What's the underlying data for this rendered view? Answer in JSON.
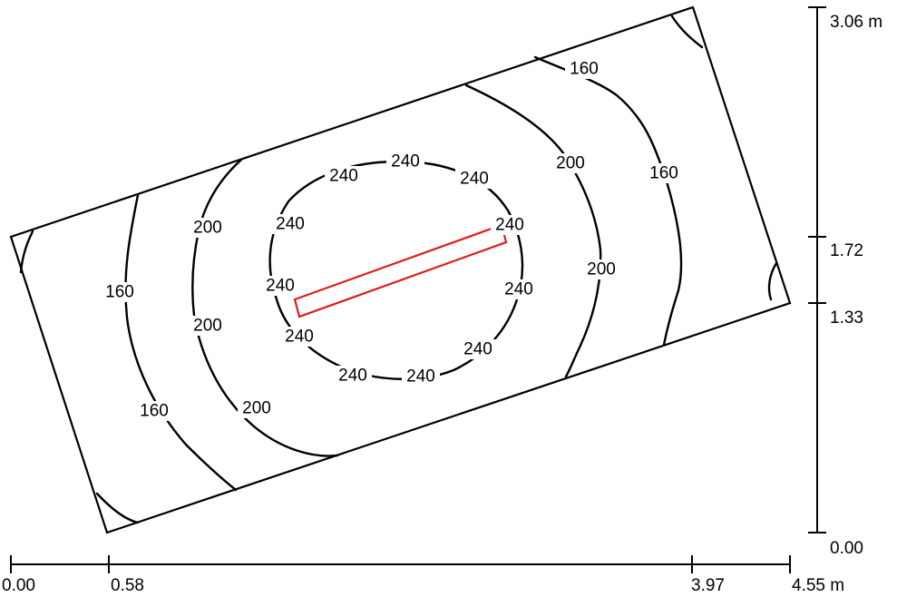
{
  "plan": {
    "units": "m",
    "x_ticks": [
      "0.00",
      "0.58",
      "3.97",
      "4.55 m"
    ],
    "y_ticks": [
      "3.06 m",
      "1.72",
      "1.33",
      "0.00"
    ],
    "contour_labels": {
      "outer_a": "160",
      "outer_b": "160",
      "outer_c": "160",
      "outer_d": "160",
      "mid_a": "200",
      "mid_b": "200",
      "mid_c": "200",
      "mid_d": "200",
      "mid_e": "200",
      "inner_1": "240",
      "inner_2": "240",
      "inner_3": "240",
      "inner_4": "240",
      "inner_5": "240",
      "inner_6": "240",
      "inner_7": "240",
      "inner_8": "240",
      "inner_9": "240",
      "inner_10": "240"
    },
    "colors": {
      "lines": "#000000",
      "luminaire": "#e01b1b",
      "background": "#ffffff"
    }
  }
}
